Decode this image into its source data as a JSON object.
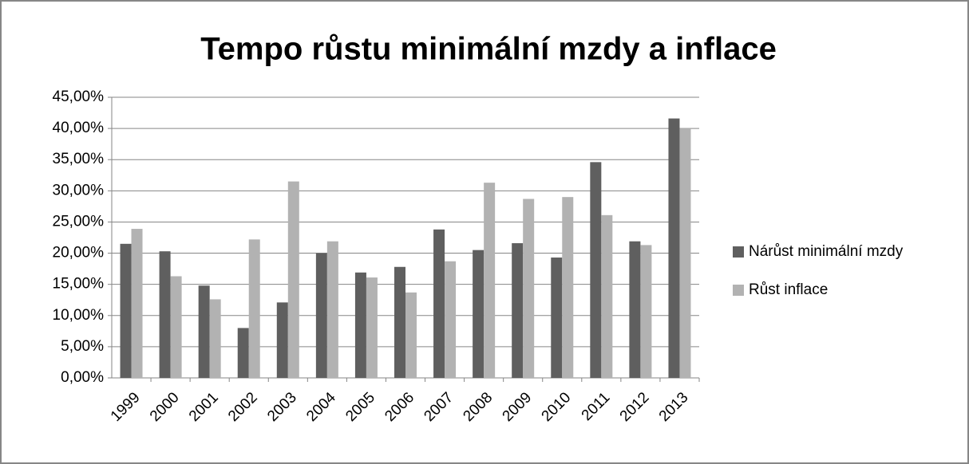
{
  "chart_data": {
    "type": "bar",
    "title": "Tempo růstu minimální mzdy a inflace",
    "categories": [
      "1999",
      "2000",
      "2001",
      "2002",
      "2003",
      "2004",
      "2005",
      "2006",
      "2007",
      "2008",
      "2009",
      "2010",
      "2011",
      "2012",
      "2013"
    ],
    "series": [
      {
        "name": "Nárůst minimální mzdy",
        "color": "#5f5f5f",
        "values": [
          21.5,
          20.3,
          14.8,
          8.0,
          12.1,
          20.0,
          16.9,
          17.8,
          23.8,
          20.5,
          21.6,
          19.3,
          34.6,
          21.9,
          41.6
        ]
      },
      {
        "name": "Růst inflace",
        "color": "#b2b2b2",
        "values": [
          23.9,
          16.3,
          12.6,
          22.2,
          31.5,
          21.9,
          16.1,
          13.7,
          18.7,
          31.3,
          28.7,
          29.0,
          26.1,
          21.3,
          40.0
        ]
      }
    ],
    "ylim": [
      0,
      45
    ],
    "yticks": [
      {
        "value": 0,
        "label": "0,00%"
      },
      {
        "value": 5,
        "label": "5,00%"
      },
      {
        "value": 10,
        "label": "10,00%"
      },
      {
        "value": 15,
        "label": "15,00%"
      },
      {
        "value": 20,
        "label": "20,00%"
      },
      {
        "value": 25,
        "label": "25,00%"
      },
      {
        "value": 30,
        "label": "30,00%"
      },
      {
        "value": 35,
        "label": "35,00%"
      },
      {
        "value": 40,
        "label": "40,00%"
      },
      {
        "value": 45,
        "label": "45,00%"
      }
    ],
    "grid": true,
    "legend": "right"
  }
}
